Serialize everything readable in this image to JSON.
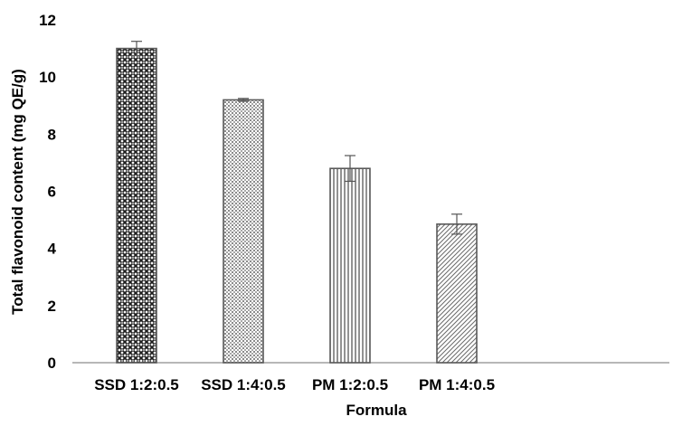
{
  "chart_data": {
    "type": "bar",
    "title": "",
    "xlabel": "Formula",
    "ylabel": "Total flavonoid content (mg QE/g)",
    "categories": [
      "SSD 1:2:0.5",
      "SSD 1:4:0.5",
      "PM 1:2:0.5",
      "PM 1:4:0.5"
    ],
    "values": [
      11.0,
      9.2,
      6.8,
      4.85
    ],
    "errors": [
      0.25,
      0.05,
      0.45,
      0.35
    ],
    "ylim": [
      0,
      12
    ],
    "yticks": [
      "0",
      "2",
      "4",
      "6",
      "8",
      "10",
      "12"
    ],
    "grid": false,
    "legend": "none",
    "bar_patterns": [
      "dense-crosshatch",
      "fine-dots",
      "vertical-lines",
      "diagonal-lines"
    ],
    "colors": {
      "bar_stroke": "#595959",
      "pattern": "#3a3a3a",
      "axis": "#8c8c8c",
      "text": "#000000"
    }
  }
}
